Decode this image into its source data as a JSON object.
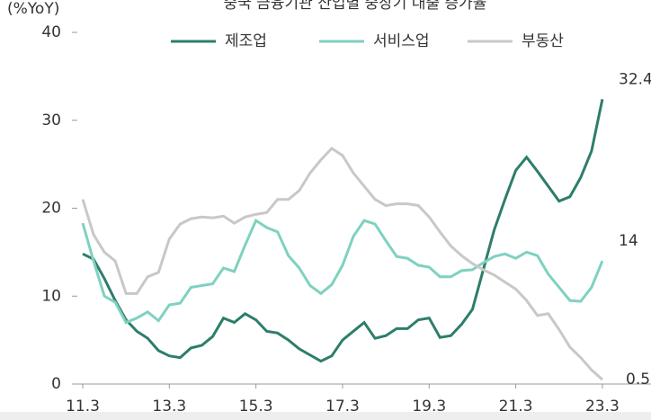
{
  "chart_data": {
    "type": "line",
    "title": "중국 금융기관 산업별 중장기 대출 증가율",
    "y_label": "(%YoY)",
    "categories": [
      "11.3",
      null,
      null,
      null,
      null,
      null,
      null,
      null,
      "13.3",
      null,
      null,
      null,
      null,
      null,
      null,
      null,
      "15.3",
      null,
      null,
      null,
      null,
      null,
      null,
      null,
      "17.3",
      null,
      null,
      null,
      null,
      null,
      null,
      null,
      "19.3",
      null,
      null,
      null,
      null,
      null,
      null,
      null,
      "21.3",
      null,
      null,
      null,
      null,
      null,
      null,
      null,
      "23.3"
    ],
    "series": [
      {
        "name": "제조업",
        "color": "#2e7d6b",
        "values": [
          14.8,
          14.2,
          12,
          9.5,
          7.3,
          6,
          5.2,
          3.8,
          3.2,
          3.0,
          4.1,
          4.4,
          5.4,
          7.5,
          7.0,
          8.0,
          7.3,
          6,
          5.8,
          5.0,
          4.0,
          3.3,
          2.6,
          3.2,
          5.0,
          6.0,
          7.0,
          5.2,
          5.5,
          6.3,
          6.3,
          7.3,
          7.5,
          5.3,
          5.5,
          6.8,
          8.5,
          13,
          17.5,
          21,
          24.3,
          25.8,
          24.2,
          22.5,
          20.8,
          21.3,
          23.5,
          26.5,
          32.4
        ]
      },
      {
        "name": "서비스업",
        "color": "#7fd1c0",
        "values": [
          18.3,
          14,
          10,
          9.3,
          7.0,
          7.5,
          8.2,
          7.2,
          9,
          9.2,
          11,
          11.2,
          11.4,
          13.2,
          12.8,
          15.8,
          18.6,
          17.8,
          17.3,
          14.6,
          13.2,
          11.2,
          10.3,
          11.3,
          13.5,
          16.8,
          18.6,
          18.2,
          16.3,
          14.5,
          14.3,
          13.5,
          13.3,
          12.2,
          12.2,
          12.9,
          13,
          13.8,
          14.5,
          14.8,
          14.3,
          15,
          14.6,
          12.5,
          11,
          9.5,
          9.4,
          11.0,
          14.0
        ]
      },
      {
        "name": "부동산",
        "color": "#c8c8c8",
        "values": [
          21,
          17,
          15,
          14,
          10.3,
          10.3,
          12.2,
          12.7,
          16.5,
          18.2,
          18.8,
          19,
          18.9,
          19.1,
          18.3,
          19,
          19.3,
          19.5,
          21,
          21,
          22,
          24,
          25.5,
          26.8,
          26,
          24,
          22.5,
          21,
          20.3,
          20.5,
          20.5,
          20.3,
          19,
          17.3,
          15.7,
          14.6,
          13.7,
          13,
          12.4,
          11.6,
          10.8,
          9.5,
          7.8,
          8,
          6.2,
          4.2,
          3,
          1.6,
          0.5
        ]
      }
    ],
    "ylim": [
      0,
      40
    ],
    "yticks": [
      0,
      10,
      20,
      30,
      40
    ],
    "grid": false,
    "legend": "top"
  }
}
